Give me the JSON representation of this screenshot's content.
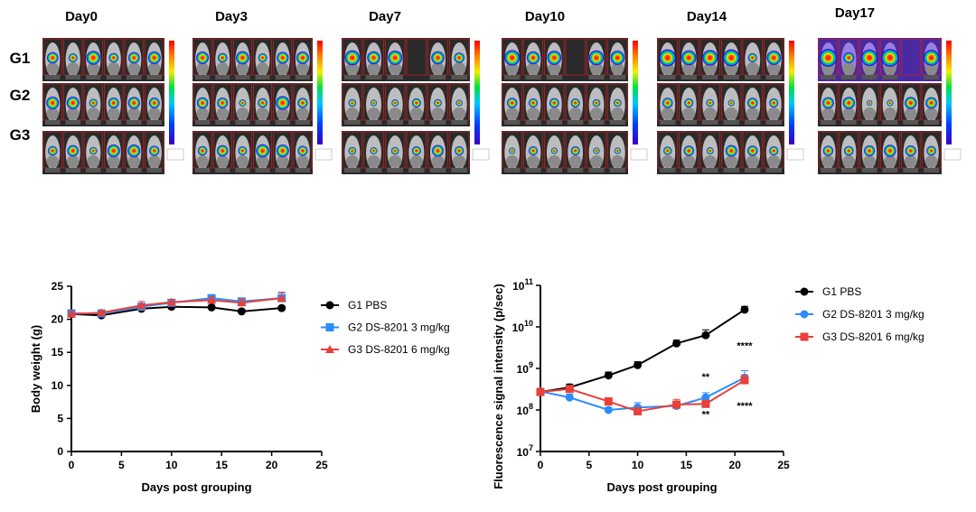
{
  "imaging": {
    "panels": [
      {
        "day": "Day0"
      },
      {
        "day": "Day3"
      },
      {
        "day": "Day7"
      },
      {
        "day": "Day10"
      },
      {
        "day": "Day14"
      },
      {
        "day": "Day17"
      }
    ],
    "groups": [
      "G1",
      "G2",
      "G3"
    ],
    "colormap": [
      "#3a00c8",
      "#0040ff",
      "#00c8ff",
      "#00e040",
      "#f0f000",
      "#ff8000",
      "#ff0000"
    ]
  },
  "chart_data": [
    {
      "type": "line",
      "xlabel": "Days post grouping",
      "ylabel": "Body weight (g)",
      "xlim": [
        0,
        25
      ],
      "ylim": [
        0,
        25
      ],
      "xticks": [
        0,
        5,
        10,
        15,
        20,
        25
      ],
      "yticks": [
        0,
        5,
        10,
        15,
        20,
        25
      ],
      "legend_position": "right",
      "x": [
        0,
        3,
        7,
        10,
        14,
        17,
        21
      ],
      "series": [
        {
          "name": "G1 PBS",
          "color": "#000000",
          "marker": "circle",
          "values": [
            20.8,
            20.6,
            21.6,
            21.9,
            21.8,
            21.2,
            21.7
          ],
          "error": [
            0.3,
            0.3,
            0.3,
            0.3,
            0.3,
            0.3,
            0.3
          ]
        },
        {
          "name": "G2 DS-8201 3 mg/kg",
          "color": "#2b8cff",
          "marker": "square",
          "values": [
            20.9,
            20.9,
            21.9,
            22.5,
            23.2,
            22.7,
            23.2
          ],
          "error": [
            0.3,
            0.3,
            0.4,
            0.4,
            0.4,
            0.5,
            0.8
          ]
        },
        {
          "name": "G3 DS-8201 6 mg/kg",
          "color": "#e8403a",
          "marker": "triangle",
          "values": [
            20.8,
            21.0,
            22.1,
            22.6,
            22.9,
            22.5,
            23.2
          ],
          "error": [
            0.4,
            0.3,
            0.6,
            0.4,
            0.5,
            0.6,
            0.9
          ]
        }
      ]
    },
    {
      "type": "line",
      "xlabel": "Days post grouping",
      "ylabel": "Fluorescence signal intensity (p/sec)",
      "yscale": "log",
      "xlim": [
        0,
        25
      ],
      "ylim": [
        10000000.0,
        100000000000.0
      ],
      "xticks": [
        0,
        5,
        10,
        15,
        20,
        25
      ],
      "yticks": [
        10000000.0,
        100000000.0,
        1000000000.0,
        10000000000.0,
        100000000000.0
      ],
      "ytick_labels": [
        {
          "base": "10",
          "exp": "7"
        },
        {
          "base": "10",
          "exp": "8"
        },
        {
          "base": "10",
          "exp": "9"
        },
        {
          "base": "10",
          "exp": "10"
        },
        {
          "base": "10",
          "exp": "11"
        }
      ],
      "legend_position": "right",
      "x": [
        0,
        3,
        7,
        10,
        14,
        17,
        21
      ],
      "series": [
        {
          "name": "G1 PBS",
          "color": "#000000",
          "marker": "circle",
          "values": [
            270000000.0,
            350000000.0,
            680000000.0,
            1200000000.0,
            4000000000.0,
            6300000000.0,
            26000000000.0
          ],
          "error_upper": [
            320000000.0,
            420000000.0,
            820000000.0,
            1450000000.0,
            4800000000.0,
            8500000000.0,
            31000000000.0
          ]
        },
        {
          "name": "G2 DS-8201 3 mg/kg",
          "color": "#2b8cff",
          "marker": "circle",
          "values": [
            280000000.0,
            200000000.0,
            100000000.0,
            115000000.0,
            125000000.0,
            200000000.0,
            600000000.0
          ],
          "error_upper": [
            330000000.0,
            240000000.0,
            115000000.0,
            150000000.0,
            160000000.0,
            260000000.0,
            880000000.0
          ]
        },
        {
          "name": "G3 DS-8201 6 mg/kg",
          "color": "#e8403a",
          "marker": "square",
          "values": [
            270000000.0,
            320000000.0,
            160000000.0,
            93000000.0,
            135000000.0,
            140000000.0,
            520000000.0
          ],
          "error_upper": [
            310000000.0,
            370000000.0,
            195000000.0,
            110000000.0,
            180000000.0,
            170000000.0,
            700000000.0
          ]
        }
      ],
      "annotations": [
        {
          "text": "**",
          "x": 17,
          "y": 520000000.0
        },
        {
          "text": "**",
          "x": 17,
          "y": 65000000.0
        },
        {
          "text": "****",
          "x": 21,
          "y": 2900000000.0
        },
        {
          "text": "****",
          "x": 21,
          "y": 105000000.0
        }
      ]
    }
  ]
}
